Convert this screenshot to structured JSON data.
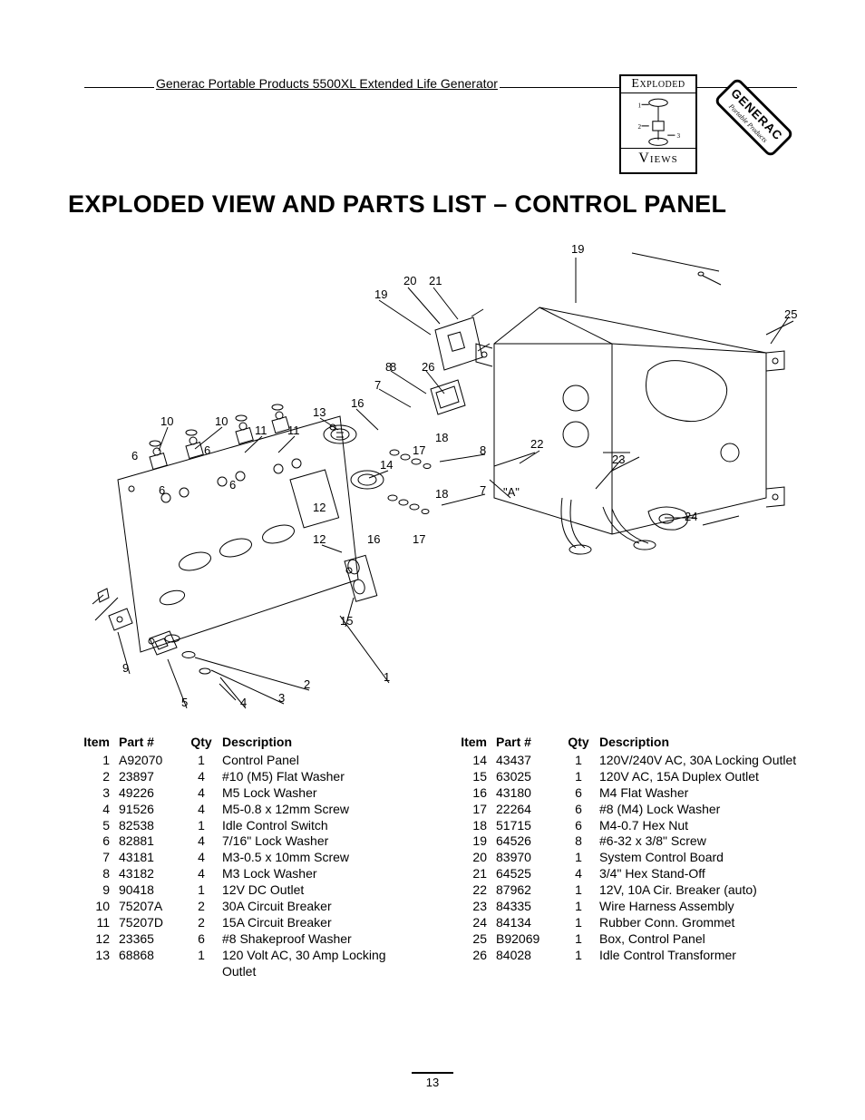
{
  "header": {
    "product_line": "Generac Portable Products 5500XL Extended Life Generator",
    "exploded_badge_top": "Exploded",
    "exploded_badge_bottom": "Views",
    "brand_text": "GENERAC",
    "brand_sub": "Portable Products"
  },
  "title": "EXPLODED VIEW AND PARTS LIST – CONTROL PANEL",
  "page_number": "13",
  "diagram": {
    "type": "exploded-view-line-drawing",
    "stroke": "#000000",
    "fill": "#ffffff",
    "callouts": [
      "1",
      "2",
      "3",
      "4",
      "5",
      "6",
      "7",
      "8",
      "9",
      "10",
      "11",
      "12",
      "13",
      "14",
      "15",
      "16",
      "17",
      "18",
      "19",
      "20",
      "21",
      "22",
      "23",
      "24",
      "25",
      "26",
      "\"A\""
    ],
    "callout_fontsize": 12
  },
  "parts_table": {
    "columns": [
      "Item",
      "Part #",
      "Qty",
      "Description"
    ],
    "left": [
      {
        "item": "1",
        "part": "A92070",
        "qty": "1",
        "desc": "Control Panel"
      },
      {
        "item": "2",
        "part": "23897",
        "qty": "4",
        "desc": "#10 (M5) Flat Washer"
      },
      {
        "item": "3",
        "part": "49226",
        "qty": "4",
        "desc": "M5 Lock Washer"
      },
      {
        "item": "4",
        "part": "91526",
        "qty": "4",
        "desc": "M5-0.8 x 12mm Screw"
      },
      {
        "item": "5",
        "part": "82538",
        "qty": "1",
        "desc": "Idle Control Switch"
      },
      {
        "item": "6",
        "part": "82881",
        "qty": "4",
        "desc": "7/16\" Lock Washer"
      },
      {
        "item": "7",
        "part": "43181",
        "qty": "4",
        "desc": "M3-0.5 x 10mm Screw"
      },
      {
        "item": "8",
        "part": "43182",
        "qty": "4",
        "desc": "M3 Lock Washer"
      },
      {
        "item": "9",
        "part": "90418",
        "qty": "1",
        "desc": "12V DC Outlet"
      },
      {
        "item": "10",
        "part": "75207A",
        "qty": "2",
        "desc": "30A Circuit Breaker"
      },
      {
        "item": "11",
        "part": "75207D",
        "qty": "2",
        "desc": "15A Circuit Breaker"
      },
      {
        "item": "12",
        "part": "23365",
        "qty": "6",
        "desc": "#8 Shakeproof Washer"
      },
      {
        "item": "13",
        "part": "68868",
        "qty": "1",
        "desc": "120 Volt AC, 30 Amp Locking Outlet"
      }
    ],
    "right": [
      {
        "item": "14",
        "part": "43437",
        "qty": "1",
        "desc": "120V/240V AC, 30A Locking Outlet"
      },
      {
        "item": "15",
        "part": "63025",
        "qty": "1",
        "desc": "120V AC, 15A Duplex Outlet"
      },
      {
        "item": "16",
        "part": "43180",
        "qty": "6",
        "desc": "M4 Flat Washer"
      },
      {
        "item": "17",
        "part": "22264",
        "qty": "6",
        "desc": "#8 (M4) Lock Washer"
      },
      {
        "item": "18",
        "part": "51715",
        "qty": "6",
        "desc": "M4-0.7 Hex Nut"
      },
      {
        "item": "19",
        "part": "64526",
        "qty": "8",
        "desc": "#6-32 x 3/8\" Screw"
      },
      {
        "item": "20",
        "part": "83970",
        "qty": "1",
        "desc": "System Control Board"
      },
      {
        "item": "21",
        "part": "64525",
        "qty": "4",
        "desc": "3/4\" Hex Stand-Off"
      },
      {
        "item": "22",
        "part": "87962",
        "qty": "1",
        "desc": "12V, 10A Cir. Breaker (auto)"
      },
      {
        "item": "23",
        "part": "84335",
        "qty": "1",
        "desc": "Wire Harness Assembly"
      },
      {
        "item": "24",
        "part": "84134",
        "qty": "1",
        "desc": "Rubber Conn. Grommet"
      },
      {
        "item": "25",
        "part": "B92069",
        "qty": "1",
        "desc": "Box, Control Panel"
      },
      {
        "item": "26",
        "part": "84028",
        "qty": "1",
        "desc": "Idle Control Transformer"
      }
    ]
  }
}
